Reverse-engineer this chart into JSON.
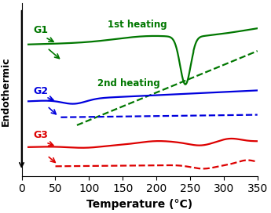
{
  "xlabel": "Temperature (°C)",
  "ylabel": "Endothermic",
  "xlim": [
    0,
    350
  ],
  "xticks": [
    0,
    50,
    100,
    150,
    200,
    250,
    300,
    350
  ],
  "colors": {
    "G1": "#007700",
    "G2": "#0000dd",
    "G3": "#dd0000"
  },
  "label_1st": "1st heating",
  "label_2nd": "2nd heating",
  "label_G1": "G1",
  "label_G2": "G2",
  "label_G3": "G3",
  "figsize": [
    3.45,
    2.72
  ],
  "dpi": 100
}
